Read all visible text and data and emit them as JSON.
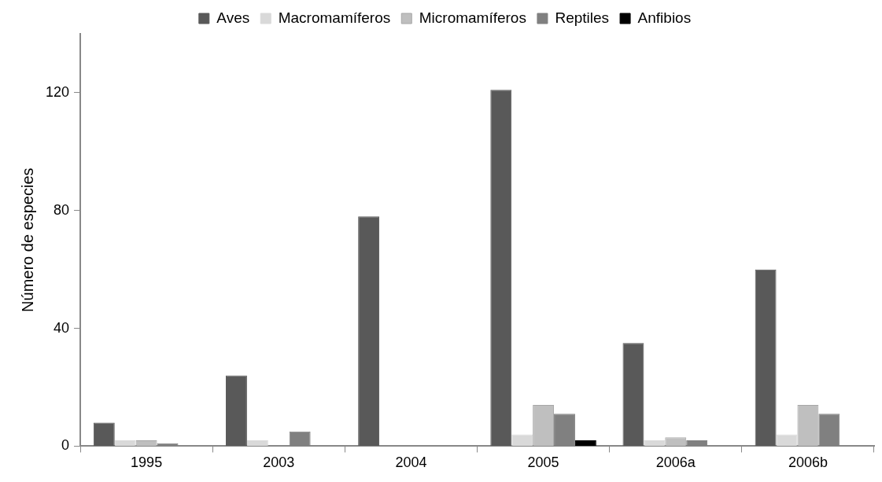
{
  "chart_data": {
    "type": "bar",
    "ylabel": "Número de especies",
    "categories": [
      "1995",
      "2003",
      "2004",
      "2005",
      "2006a",
      "2006b"
    ],
    "series": [
      {
        "name": "Aves",
        "color": "#595959",
        "values": [
          8,
          24,
          78,
          121,
          35,
          60
        ]
      },
      {
        "name": "Macromamíferos",
        "color": "#d9d9d9",
        "values": [
          2,
          2,
          0,
          4,
          2,
          4
        ]
      },
      {
        "name": "Micromamíferos",
        "color": "#bfbfbf",
        "values": [
          2,
          0,
          0,
          14,
          3,
          14
        ]
      },
      {
        "name": "Reptiles",
        "color": "#808080",
        "values": [
          1,
          5,
          0,
          11,
          2,
          11
        ]
      },
      {
        "name": "Anfibios",
        "color": "#000000",
        "values": [
          0,
          0,
          0,
          2,
          0,
          0
        ]
      }
    ],
    "ylim": [
      0,
      140
    ],
    "yticks": [
      0,
      40,
      80,
      120
    ],
    "grid": false,
    "legend": "top"
  }
}
